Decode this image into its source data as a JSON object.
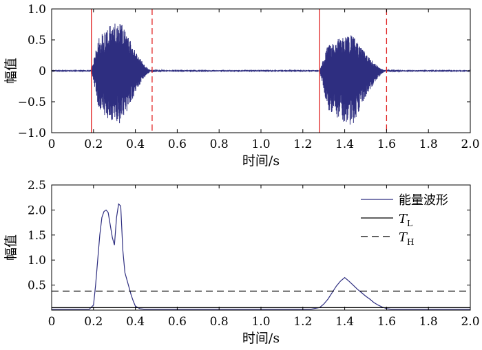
{
  "chart_data": [
    {
      "type": "line",
      "xlabel": "时间/s",
      "ylabel": "幅值",
      "xlim": [
        0,
        2.0
      ],
      "ylim": [
        -1.0,
        1.0
      ],
      "xticks": [
        "0",
        "0.2",
        "0.4",
        "0.6",
        "0.8",
        "1.0",
        "1.2",
        "1.4",
        "1.6",
        "1.8",
        "2.0"
      ],
      "yticks": [
        "−1.0",
        "−0.5",
        "0",
        "0.5",
        "1.0"
      ],
      "yticks_values": [
        -1.0,
        -0.5,
        0,
        0.5,
        1.0
      ],
      "series": [
        {
          "color": "#2e2e80",
          "bursts": [
            {
              "start": 0.19,
              "end": 0.48,
              "peak_pos": 0.8,
              "peak_neg": -0.88
            },
            {
              "start": 1.28,
              "end": 1.6,
              "peak_pos": 0.58,
              "peak_neg": -0.88
            }
          ]
        }
      ],
      "markers": [
        {
          "x": 0.19,
          "style": "solid",
          "color": "#e02020"
        },
        {
          "x": 0.48,
          "style": "dashed",
          "color": "#e02020"
        },
        {
          "x": 1.28,
          "style": "solid",
          "color": "#e02020"
        },
        {
          "x": 1.6,
          "style": "dashed",
          "color": "#e02020"
        }
      ],
      "grid": false
    },
    {
      "type": "line",
      "xlabel": "时间/s",
      "ylabel": "幅值",
      "xlim": [
        0,
        2.0
      ],
      "ylim": [
        0,
        2.5
      ],
      "xticks": [
        "0",
        "0.2",
        "0.4",
        "0.6",
        "0.8",
        "1.0",
        "1.2",
        "1.4",
        "1.6",
        "1.8",
        "2.0"
      ],
      "yticks": [
        "0.5",
        "1.0",
        "1.5",
        "2.0",
        "2.5"
      ],
      "yticks_values": [
        0.5,
        1.0,
        1.5,
        2.0,
        2.5
      ],
      "series": [
        {
          "name": "能量波形",
          "color": "#2e2e80",
          "style": "solid",
          "x": [
            0,
            0.18,
            0.2,
            0.21,
            0.22,
            0.23,
            0.24,
            0.25,
            0.26,
            0.27,
            0.28,
            0.29,
            0.3,
            0.31,
            0.32,
            0.33,
            0.34,
            0.35,
            0.36,
            0.37,
            0.38,
            0.39,
            0.4,
            0.42,
            0.44,
            0.46,
            1.24,
            1.28,
            1.3,
            1.32,
            1.34,
            1.36,
            1.38,
            1.4,
            1.42,
            1.44,
            1.46,
            1.48,
            1.5,
            1.52,
            1.54,
            1.56,
            1.58,
            1.6,
            1.62,
            2.0
          ],
          "y": [
            0.02,
            0.02,
            0.1,
            0.5,
            1.0,
            1.5,
            1.85,
            1.97,
            2.0,
            1.95,
            1.7,
            1.45,
            1.3,
            1.85,
            2.12,
            2.08,
            1.2,
            0.75,
            0.6,
            0.45,
            0.3,
            0.18,
            0.08,
            0.03,
            0.02,
            0.02,
            0.02,
            0.05,
            0.12,
            0.22,
            0.35,
            0.48,
            0.58,
            0.65,
            0.58,
            0.5,
            0.42,
            0.35,
            0.28,
            0.22,
            0.15,
            0.1,
            0.06,
            0.03,
            0.02,
            0.02
          ]
        },
        {
          "name": "T_L",
          "color": "#000000",
          "style": "solid",
          "y_const": 0.05
        },
        {
          "name": "T_H",
          "color": "#000000",
          "style": "dashed",
          "y_const": 0.38
        }
      ],
      "legend": {
        "position": "top-right",
        "entries": [
          {
            "label": "能量波形",
            "style": "solid",
            "color": "#2e2e80"
          },
          {
            "label_main": "T",
            "label_sub": "L",
            "style": "solid",
            "color": "#000000"
          },
          {
            "label_main": "T",
            "label_sub": "H",
            "style": "dashed",
            "color": "#000000"
          }
        ]
      },
      "grid": false
    }
  ]
}
